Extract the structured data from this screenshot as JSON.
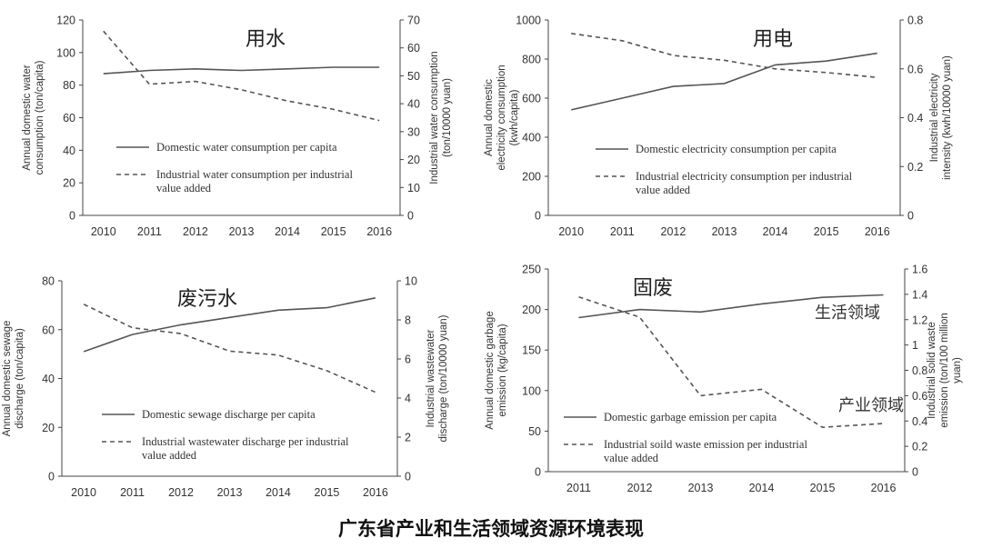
{
  "caption": "广东省产业和生活领域资源环境表现",
  "chart_data": [
    {
      "type": "line",
      "title": "用水",
      "x": [
        2010,
        2011,
        2012,
        2013,
        2014,
        2015,
        2016
      ],
      "ylabel": "Annual domestic water consumption (ton/capita)",
      "y2label": "Industrial water consumption (ton/10000 yuan)",
      "ylim": [
        0,
        120
      ],
      "yticks": [
        0,
        20,
        40,
        60,
        80,
        100,
        120
      ],
      "y2lim": [
        0,
        70
      ],
      "y2ticks": [
        0,
        10,
        20,
        30,
        40,
        50,
        60,
        70
      ],
      "series": [
        {
          "name": "Domestic water consumption per capita",
          "axis": "left",
          "style": "solid",
          "x": [
            2010,
            2011,
            2012,
            2013,
            2014,
            2015,
            2016
          ],
          "values": [
            87,
            89,
            90,
            89,
            90,
            91,
            91
          ]
        },
        {
          "name": "Industrial water consumption per industrial value added",
          "axis": "right",
          "style": "dashed",
          "x": [
            2010,
            2011,
            2012,
            2013,
            2014,
            2015,
            2016
          ],
          "values": [
            66,
            47,
            48,
            45,
            41,
            38,
            34
          ]
        }
      ],
      "grid": false,
      "legend": "bottom-left"
    },
    {
      "type": "line",
      "title": "用电",
      "x": [
        2010,
        2011,
        2012,
        2013,
        2014,
        2015,
        2016
      ],
      "ylabel": "Annual domestic electricity consumption (kwh/capita)",
      "y2label": "Industrial electricity intensity (kwh/10000 yuan)",
      "ylim": [
        0,
        1000
      ],
      "yticks": [
        0,
        200,
        400,
        600,
        800,
        1000
      ],
      "y2lim": [
        0,
        0.8
      ],
      "y2ticks": [
        0,
        0.2,
        0.4,
        0.6,
        0.8
      ],
      "series": [
        {
          "name": "Domestic electricity consumption per capita",
          "axis": "left",
          "style": "solid",
          "x": [
            2010,
            2011,
            2012,
            2013,
            2014,
            2015,
            2016
          ],
          "values": [
            540,
            600,
            660,
            675,
            770,
            790,
            830
          ]
        },
        {
          "name": "Industrial electricity consumption per industrial value added",
          "axis": "right",
          "style": "dashed",
          "x": [
            2010,
            2011,
            2012,
            2013,
            2014,
            2015,
            2016
          ],
          "values": [
            0.745,
            0.715,
            0.655,
            0.635,
            0.6,
            0.585,
            0.565
          ]
        }
      ],
      "grid": false,
      "legend": "bottom-left"
    },
    {
      "type": "line",
      "title": "废污水",
      "x": [
        2010,
        2011,
        2012,
        2013,
        2014,
        2015,
        2016
      ],
      "ylabel": "Annual domestic sewage discharge (ton/capita)",
      "y2label": "Industrial wastewater discharge (ton/10000 yuan)",
      "ylim": [
        0,
        80
      ],
      "yticks": [
        0,
        20,
        40,
        60,
        80
      ],
      "y2lim": [
        0,
        10
      ],
      "y2ticks": [
        0,
        2,
        4,
        6,
        8,
        10
      ],
      "series": [
        {
          "name": "Domestic sewage discharge per capita",
          "axis": "left",
          "style": "solid",
          "x": [
            2010,
            2011,
            2012,
            2013,
            2014,
            2015,
            2016
          ],
          "values": [
            51,
            58,
            62,
            65,
            68,
            69,
            73
          ]
        },
        {
          "name": "Industrial wastewater discharge per industrial value added",
          "axis": "right",
          "style": "dashed",
          "x": [
            2010,
            2011,
            2012,
            2013,
            2014,
            2015,
            2016
          ],
          "values": [
            8.8,
            7.6,
            7.3,
            6.4,
            6.2,
            5.4,
            4.3
          ]
        }
      ],
      "grid": false,
      "legend": "bottom-left"
    },
    {
      "type": "line",
      "title": "固废",
      "x": [
        2011,
        2012,
        2013,
        2014,
        2015,
        2016
      ],
      "ylabel": "Annual domestic garbage emission (kg/capita)",
      "y2label": "Industrial solid waste emission (ton/100 million yuan)",
      "ylim": [
        0,
        250
      ],
      "yticks": [
        0,
        50,
        100,
        150,
        200,
        250
      ],
      "y2lim": [
        0,
        1.6
      ],
      "y2ticks": [
        0,
        0.2,
        0.4,
        0.6,
        0.8,
        1.0,
        1.2,
        1.4,
        1.6
      ],
      "series": [
        {
          "name": "Domestic garbage emission per capita",
          "axis": "left",
          "style": "solid",
          "x": [
            2011,
            2012,
            2013,
            2014,
            2015,
            2016
          ],
          "values": [
            190,
            200,
            197,
            207,
            215,
            218
          ]
        },
        {
          "name": "Industrial soild waste emission per industrial value added",
          "axis": "right",
          "style": "dashed",
          "x": [
            2011,
            2012,
            2013,
            2014,
            2015,
            2016
          ],
          "values": [
            1.38,
            1.22,
            0.6,
            0.65,
            0.35,
            0.38
          ]
        }
      ],
      "annotations": [
        "生活领域",
        "产业领域"
      ],
      "grid": false,
      "legend": "bottom-left"
    }
  ]
}
